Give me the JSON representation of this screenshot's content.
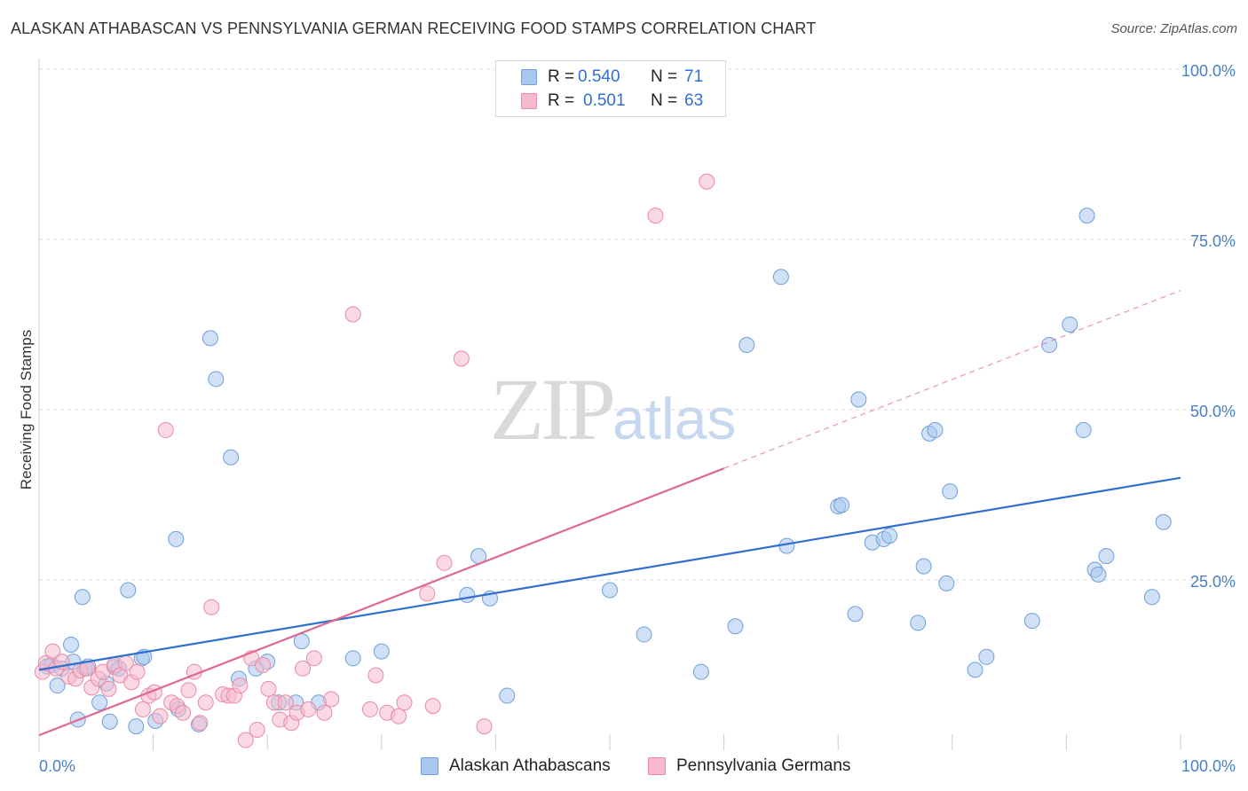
{
  "title": "ALASKAN ATHABASCAN VS PENNSYLVANIA GERMAN RECEIVING FOOD STAMPS CORRELATION CHART",
  "source": "Source: ZipAtlas.com",
  "watermark": {
    "zip": "ZIP",
    "atlas": "atlas"
  },
  "legend": {
    "series1": {
      "r_label": "R =",
      "r_value": "0.540",
      "n_label": "N =",
      "n_value": "71"
    },
    "series2": {
      "r_label": "R =",
      "r_value": "0.501",
      "n_label": "N =",
      "n_value": "63"
    }
  },
  "colors": {
    "series1_fill": "#a9c8f0",
    "series1_stroke": "#6f9fd8",
    "series1_line": "#2f6fd0",
    "series2_fill": "#f7b9cc",
    "series2_stroke": "#e88aa6",
    "series2_line": "#e06890",
    "tick_label": "#4a7fc8",
    "grid": "#d9d9d9"
  },
  "chart_data": {
    "type": "scatter",
    "title": "ALASKAN ATHABASCAN VS PENNSYLVANIA GERMAN RECEIVING FOOD STAMPS CORRELATION CHART",
    "xlabel": "",
    "ylabel": "Receiving Food Stamps",
    "xlim": [
      0,
      100
    ],
    "ylim": [
      0,
      100
    ],
    "x_tick_labels": [
      "0.0%",
      "100.0%"
    ],
    "y_ticks": [
      25,
      50,
      75,
      100
    ],
    "y_tick_labels": [
      "25.0%",
      "50.0%",
      "75.0%",
      "100.0%"
    ],
    "grid": true,
    "legend_position": "top-center",
    "series": [
      {
        "name": "Alaskan Athabascans",
        "color": "#a9c8f0",
        "r": 0.54,
        "n": 71,
        "trend": {
          "x": [
            0,
            100
          ],
          "y": [
            11.8,
            40.0
          ],
          "dashed_from": null
        },
        "points": [
          [
            0.7,
            12.3
          ],
          [
            1.1,
            12.5
          ],
          [
            1.6,
            9.5
          ],
          [
            2.0,
            12.0
          ],
          [
            2.8,
            15.5
          ],
          [
            3.4,
            4.5
          ],
          [
            3.8,
            22.5
          ],
          [
            4.0,
            12.0
          ],
          [
            4.3,
            12.3
          ],
          [
            5.3,
            7.0
          ],
          [
            5.9,
            9.8
          ],
          [
            6.2,
            4.2
          ],
          [
            6.6,
            12.2
          ],
          [
            7.0,
            12.0
          ],
          [
            7.8,
            23.5
          ],
          [
            8.5,
            3.5
          ],
          [
            9.0,
            13.5
          ],
          [
            9.2,
            13.7
          ],
          [
            10.2,
            4.3
          ],
          [
            12.0,
            31.0
          ],
          [
            12.2,
            6.0
          ],
          [
            14.0,
            3.8
          ],
          [
            15.0,
            60.5
          ],
          [
            15.5,
            54.5
          ],
          [
            16.8,
            43.0
          ],
          [
            17.5,
            10.5
          ],
          [
            19.0,
            12.0
          ],
          [
            20.0,
            13.0
          ],
          [
            21.0,
            7.0
          ],
          [
            22.5,
            7.0
          ],
          [
            23.0,
            16.0
          ],
          [
            24.5,
            7.0
          ],
          [
            27.5,
            13.5
          ],
          [
            30.0,
            14.5
          ],
          [
            37.5,
            22.8
          ],
          [
            38.5,
            28.5
          ],
          [
            39.5,
            22.3
          ],
          [
            41.0,
            8.0
          ],
          [
            50.0,
            23.5
          ],
          [
            53.0,
            17.0
          ],
          [
            58.0,
            11.5
          ],
          [
            61.0,
            18.2
          ],
          [
            62.0,
            59.5
          ],
          [
            65.0,
            69.5
          ],
          [
            65.5,
            30.0
          ],
          [
            70.0,
            35.8
          ],
          [
            70.3,
            36.0
          ],
          [
            71.5,
            20.0
          ],
          [
            71.8,
            51.5
          ],
          [
            73.0,
            30.5
          ],
          [
            74.0,
            31.0
          ],
          [
            74.5,
            31.5
          ],
          [
            77.0,
            18.7
          ],
          [
            77.5,
            27.0
          ],
          [
            78.0,
            46.5
          ],
          [
            78.5,
            47.0
          ],
          [
            79.5,
            24.5
          ],
          [
            79.8,
            38.0
          ],
          [
            82.0,
            11.8
          ],
          [
            83.0,
            13.7
          ],
          [
            87.0,
            19.0
          ],
          [
            88.5,
            59.5
          ],
          [
            90.3,
            62.5
          ],
          [
            91.5,
            47.0
          ],
          [
            91.8,
            78.5
          ],
          [
            92.5,
            26.5
          ],
          [
            92.8,
            25.8
          ],
          [
            93.5,
            28.5
          ],
          [
            97.5,
            22.5
          ],
          [
            98.5,
            33.5
          ],
          [
            3.0,
            13.0
          ]
        ]
      },
      {
        "name": "Pennsylvania Germans",
        "color": "#f7b9cc",
        "r": 0.501,
        "n": 63,
        "trend": {
          "x": [
            0,
            100
          ],
          "y": [
            2.2,
            67.5
          ],
          "dashed_from": 60
        },
        "points": [
          [
            0.3,
            11.5
          ],
          [
            0.6,
            12.8
          ],
          [
            1.2,
            14.5
          ],
          [
            1.5,
            12.0
          ],
          [
            2.0,
            13.0
          ],
          [
            2.6,
            10.8
          ],
          [
            3.2,
            10.5
          ],
          [
            3.6,
            11.7
          ],
          [
            4.2,
            12.0
          ],
          [
            4.6,
            9.2
          ],
          [
            5.2,
            10.5
          ],
          [
            5.6,
            11.5
          ],
          [
            6.1,
            9.0
          ],
          [
            6.6,
            12.5
          ],
          [
            7.1,
            11.0
          ],
          [
            7.6,
            12.8
          ],
          [
            8.1,
            10.0
          ],
          [
            8.6,
            11.5
          ],
          [
            9.1,
            6.0
          ],
          [
            9.6,
            8.0
          ],
          [
            10.1,
            8.5
          ],
          [
            10.6,
            5.0
          ],
          [
            11.1,
            47.0
          ],
          [
            11.6,
            7.0
          ],
          [
            12.1,
            6.5
          ],
          [
            12.6,
            5.5
          ],
          [
            13.1,
            8.8
          ],
          [
            13.6,
            11.5
          ],
          [
            14.1,
            4.0
          ],
          [
            14.6,
            7.0
          ],
          [
            15.1,
            21.0
          ],
          [
            16.1,
            8.2
          ],
          [
            16.6,
            8.0
          ],
          [
            17.1,
            8.0
          ],
          [
            17.6,
            9.5
          ],
          [
            18.1,
            1.5
          ],
          [
            18.6,
            13.5
          ],
          [
            19.1,
            3.0
          ],
          [
            19.6,
            12.5
          ],
          [
            20.1,
            9.0
          ],
          [
            20.6,
            7.0
          ],
          [
            21.1,
            4.5
          ],
          [
            21.6,
            7.0
          ],
          [
            22.1,
            4.0
          ],
          [
            22.6,
            5.5
          ],
          [
            23.1,
            12.0
          ],
          [
            23.6,
            6.0
          ],
          [
            24.1,
            13.5
          ],
          [
            25.0,
            5.5
          ],
          [
            25.6,
            7.5
          ],
          [
            27.5,
            64.0
          ],
          [
            29.0,
            6.0
          ],
          [
            29.5,
            11.0
          ],
          [
            30.5,
            5.5
          ],
          [
            31.5,
            5.0
          ],
          [
            32.0,
            7.0
          ],
          [
            34.0,
            23.0
          ],
          [
            34.5,
            6.5
          ],
          [
            35.5,
            27.5
          ],
          [
            37.0,
            57.5
          ],
          [
            39.0,
            3.5
          ],
          [
            54.0,
            78.5
          ],
          [
            58.5,
            83.5
          ]
        ]
      }
    ]
  },
  "bottom_legend": {
    "series1": "Alaskan Athabascans",
    "series2": "Pennsylvania Germans"
  }
}
